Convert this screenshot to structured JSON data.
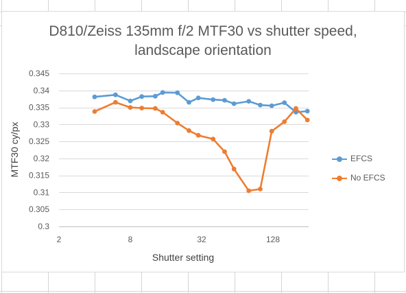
{
  "chart_data": {
    "type": "line",
    "title_line1": "D810/Zeiss 135mm f/2 MTF30 vs shutter speed,",
    "title_line2": "landscape orientation",
    "xlabel": "Shutter setting",
    "ylabel": "MTF30 cy/px",
    "x_scale": "log2",
    "xlim": [
      2,
      256
    ],
    "x_ticks": [
      2,
      8,
      32,
      128
    ],
    "ylim": [
      0.3,
      0.345
    ],
    "y_ticks": [
      "0.3",
      "0.305",
      "0.31",
      "0.315",
      "0.32",
      "0.325",
      "0.33",
      "0.335",
      "0.34",
      "0.345"
    ],
    "x": [
      4,
      6,
      8,
      10,
      13,
      15,
      20,
      25,
      30,
      40,
      50,
      60,
      80,
      100,
      125,
      160,
      200,
      250
    ],
    "legend_position": "right",
    "series": [
      {
        "name": "EFCS",
        "color": "#5b9bd5",
        "values": [
          0.3381,
          0.3387,
          0.3369,
          0.3382,
          0.3383,
          0.3394,
          0.3393,
          0.3365,
          0.3378,
          0.3373,
          0.3371,
          0.3361,
          0.3368,
          0.3357,
          0.3355,
          0.3364,
          0.3336,
          0.3339
        ]
      },
      {
        "name": "No EFCS",
        "color": "#ed7d31",
        "values": [
          0.3338,
          0.3365,
          0.335,
          0.3348,
          0.3347,
          0.3336,
          0.3304,
          0.3282,
          0.3268,
          0.3257,
          0.322,
          0.3169,
          0.3105,
          0.311,
          0.328,
          0.3308,
          0.3347,
          0.3313
        ]
      }
    ]
  }
}
